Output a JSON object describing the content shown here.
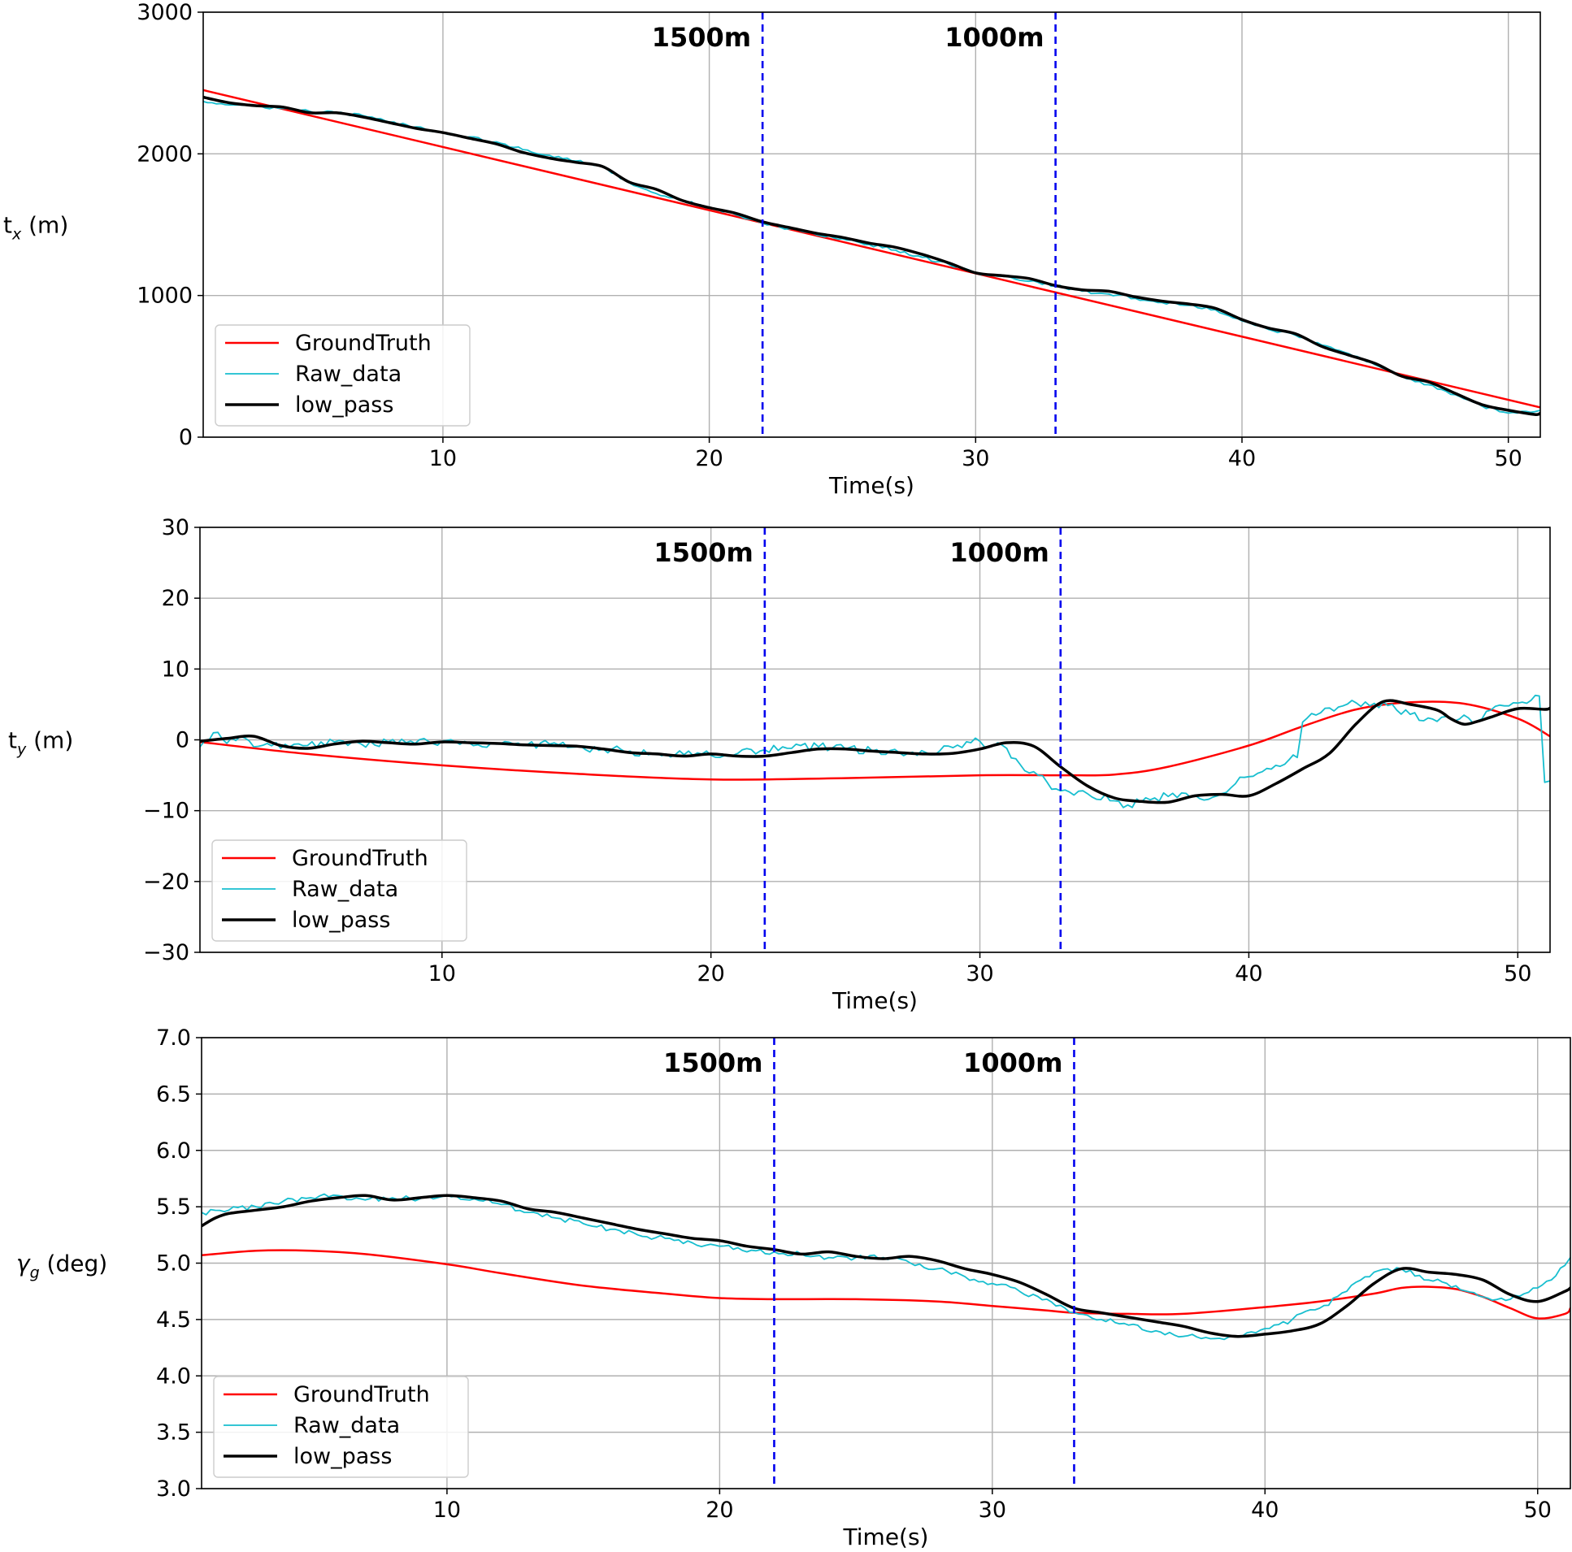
{
  "chart_data": [
    {
      "type": "line",
      "ylabel": "t",
      "ylabel_sub": "x",
      "ylabel_unit": " (m)",
      "xlabel": "Time(s)",
      "xlim": [
        1,
        51.2
      ],
      "ylim": [
        0,
        3000
      ],
      "xticks": [
        10,
        20,
        30,
        40,
        50
      ],
      "yticks": [
        0,
        1000,
        2000,
        3000
      ],
      "grid": true,
      "legend_position": "lower-left",
      "markers": [
        {
          "label": "1500m",
          "x": 22.0
        },
        {
          "label": "1000m",
          "x": 33.0
        }
      ],
      "series": [
        {
          "name": "GroundTruth",
          "color": "#ff0000",
          "width": 2.5,
          "x": [
            1,
            51.2
          ],
          "y": [
            2450,
            210
          ]
        },
        {
          "name": "Raw_data",
          "color": "#17becf",
          "width": 1.8,
          "x": [
            1,
            2,
            3,
            4,
            5,
            6,
            7,
            8,
            9,
            10,
            11,
            12,
            13,
            14,
            15,
            16,
            17,
            18,
            19,
            20,
            21,
            22,
            23,
            24,
            25,
            26,
            27,
            28,
            29,
            30,
            31,
            32,
            33,
            34,
            35,
            36,
            37,
            38,
            39,
            40,
            41,
            42,
            43,
            44,
            45,
            46,
            47,
            48,
            49,
            50,
            51,
            51.2
          ],
          "y": [
            2370,
            2345,
            2335,
            2320,
            2300,
            2290,
            2270,
            2225,
            2190,
            2150,
            2120,
            2085,
            2030,
            1990,
            1950,
            1910,
            1795,
            1720,
            1670,
            1620,
            1570,
            1510,
            1470,
            1430,
            1400,
            1360,
            1320,
            1270,
            1220,
            1160,
            1135,
            1100,
            1070,
            1030,
            1010,
            980,
            950,
            930,
            900,
            820,
            760,
            720,
            650,
            590,
            510,
            430,
            370,
            300,
            220,
            170,
            180,
            190
          ],
          "noise": 10
        },
        {
          "name": "low_pass",
          "color": "#000000",
          "width": 3.5,
          "x": [
            1,
            2,
            3,
            4,
            5,
            6,
            7,
            8,
            9,
            10,
            11,
            12,
            13,
            14,
            15,
            16,
            17,
            18,
            19,
            20,
            21,
            22,
            23,
            24,
            25,
            26,
            27,
            28,
            29,
            30,
            31,
            32,
            33,
            34,
            35,
            36,
            37,
            38,
            39,
            40,
            41,
            42,
            43,
            44,
            45,
            46,
            47,
            48,
            49,
            50,
            51,
            51.2
          ],
          "y": [
            2400,
            2360,
            2340,
            2330,
            2290,
            2290,
            2260,
            2220,
            2180,
            2150,
            2110,
            2070,
            2010,
            1970,
            1940,
            1910,
            1800,
            1750,
            1670,
            1620,
            1580,
            1520,
            1480,
            1440,
            1410,
            1370,
            1340,
            1290,
            1230,
            1160,
            1140,
            1120,
            1070,
            1040,
            1030,
            990,
            960,
            940,
            910,
            830,
            770,
            730,
            640,
            580,
            520,
            430,
            390,
            310,
            230,
            190,
            160,
            170
          ]
        }
      ]
    },
    {
      "type": "line",
      "ylabel": "t",
      "ylabel_sub": "y",
      "ylabel_unit": " (m)",
      "xlabel": "Time(s)",
      "xlim": [
        1,
        51.2
      ],
      "ylim": [
        -30,
        30
      ],
      "xticks": [
        10,
        20,
        30,
        40,
        50
      ],
      "yticks": [
        -30,
        -20,
        -10,
        0,
        10,
        20,
        30
      ],
      "grid": true,
      "legend_position": "lower-left",
      "markers": [
        {
          "label": "1500m",
          "x": 22.0
        },
        {
          "label": "1000m",
          "x": 33.0
        }
      ],
      "series": [
        {
          "name": "GroundTruth",
          "color": "#ff0000",
          "width": 2.5,
          "x": [
            1,
            5,
            10,
            15,
            20,
            25,
            30,
            33,
            35,
            37,
            40,
            42,
            44,
            46,
            48,
            50,
            51.2
          ],
          "y": [
            -0.3,
            -2.0,
            -3.6,
            -4.8,
            -5.6,
            -5.4,
            -5.0,
            -5.0,
            -4.9,
            -3.8,
            -0.8,
            1.9,
            4.3,
            5.3,
            5.1,
            3.0,
            0.5
          ]
        },
        {
          "name": "Raw_data",
          "color": "#17becf",
          "width": 1.8,
          "x": [
            1,
            1.5,
            2,
            2.5,
            3,
            3.5,
            4,
            5,
            6,
            7,
            8,
            9,
            10,
            11,
            12,
            13,
            14,
            15,
            16,
            17,
            18,
            19,
            20,
            21,
            22,
            23,
            24,
            25,
            26,
            27,
            28,
            29,
            30,
            30.5,
            31,
            31.5,
            32,
            32.5,
            33,
            33.5,
            34,
            35,
            35.5,
            36,
            36.5,
            37,
            37.5,
            38,
            38.5,
            39,
            39.5,
            40,
            40.5,
            41,
            41.5,
            41.8,
            42,
            42.5,
            43,
            43.5,
            44,
            44.5,
            45,
            45.5,
            46,
            46.5,
            47,
            47.5,
            48,
            48.5,
            49,
            49.5,
            50,
            50.5,
            50.8,
            51,
            51.2
          ],
          "y": [
            -1.0,
            1.0,
            -0.5,
            0.5,
            -1.0,
            -0.5,
            -1.2,
            -0.8,
            -0.3,
            -0.6,
            -0.3,
            -0.5,
            -0.2,
            -0.4,
            -0.6,
            -0.8,
            -0.6,
            -1.0,
            -1.3,
            -1.6,
            -1.9,
            -2.1,
            -2.2,
            -1.9,
            -1.4,
            -1.2,
            -1.0,
            -1.3,
            -1.6,
            -1.8,
            -1.8,
            -1.1,
            -0.2,
            -0.8,
            -1.2,
            -3.5,
            -4.5,
            -6.0,
            -7.2,
            -7.8,
            -7.6,
            -8.6,
            -9.2,
            -8.8,
            -8.2,
            -8.0,
            -7.5,
            -7.8,
            -8.4,
            -7.6,
            -6.2,
            -5.2,
            -4.5,
            -3.6,
            -2.8,
            -2.5,
            2.5,
            3.5,
            4.5,
            4.8,
            5.2,
            4.8,
            5.3,
            4.2,
            3.6,
            2.7,
            2.6,
            3.0,
            3.5,
            2.7,
            4.2,
            4.8,
            5.2,
            5.6,
            6.2,
            -6.0,
            -5.8
          ],
          "noise": 0.6
        },
        {
          "name": "low_pass",
          "color": "#000000",
          "width": 3.5,
          "x": [
            1,
            2,
            3,
            4,
            5,
            6,
            7,
            8,
            9,
            10,
            11,
            12,
            13,
            14,
            15,
            16,
            17,
            18,
            19,
            20,
            21,
            22,
            23,
            24,
            25,
            26,
            27,
            28,
            29,
            30,
            31,
            32,
            33,
            34,
            35,
            36,
            37,
            38,
            39,
            40,
            41,
            42,
            43,
            44,
            45,
            46,
            47,
            47.5,
            48,
            48.5,
            49,
            50,
            51,
            51.2
          ],
          "y": [
            -0.2,
            0.2,
            0.5,
            -0.8,
            -1.2,
            -0.6,
            -0.2,
            -0.4,
            -0.6,
            -0.3,
            -0.4,
            -0.5,
            -0.7,
            -0.8,
            -0.9,
            -1.3,
            -1.8,
            -2.0,
            -2.3,
            -2.0,
            -2.3,
            -2.3,
            -1.8,
            -1.3,
            -1.3,
            -1.6,
            -1.8,
            -2.0,
            -1.9,
            -1.3,
            -0.4,
            -0.9,
            -3.8,
            -6.5,
            -8.2,
            -8.7,
            -8.8,
            -7.9,
            -7.7,
            -7.9,
            -6.2,
            -4.1,
            -1.9,
            2.3,
            5.4,
            5.0,
            4.2,
            3.0,
            2.2,
            2.6,
            3.2,
            4.4,
            4.3,
            4.5
          ]
        }
      ]
    },
    {
      "type": "line",
      "ylabel": "γ",
      "ylabel_sub": "g",
      "ylabel_unit": " (deg)",
      "xlabel": "Time(s)",
      "xlim": [
        1,
        51.2
      ],
      "ylim": [
        3.0,
        7.0
      ],
      "xticks": [
        10,
        20,
        30,
        40,
        50
      ],
      "yticks": [
        3.0,
        3.5,
        4.0,
        4.5,
        5.0,
        5.5,
        6.0,
        6.5,
        7.0
      ],
      "tick_decimals": 1,
      "grid": true,
      "legend_position": "lower-left",
      "markers": [
        {
          "label": "1500m",
          "x": 22.0
        },
        {
          "label": "1000m",
          "x": 33.0
        }
      ],
      "series": [
        {
          "name": "GroundTruth",
          "color": "#ff0000",
          "width": 2.5,
          "x": [
            1,
            3,
            5,
            7,
            10,
            12,
            15,
            18,
            20,
            22,
            25,
            28,
            30,
            32,
            33,
            35,
            37,
            40,
            42,
            44,
            45,
            46,
            47,
            48,
            49,
            50,
            51,
            51.2
          ],
          "y": [
            5.07,
            5.11,
            5.11,
            5.08,
            4.99,
            4.91,
            4.8,
            4.73,
            4.69,
            4.68,
            4.68,
            4.66,
            4.62,
            4.58,
            4.56,
            4.55,
            4.55,
            4.61,
            4.66,
            4.73,
            4.78,
            4.79,
            4.77,
            4.7,
            4.6,
            4.51,
            4.55,
            4.6
          ]
        },
        {
          "name": "Raw_data",
          "color": "#17becf",
          "width": 1.8,
          "x": [
            1,
            2,
            3,
            4,
            5,
            6,
            7,
            8,
            9,
            10,
            11,
            12,
            13,
            14,
            15,
            16,
            17,
            18,
            19,
            20,
            21,
            22,
            23,
            24,
            25,
            26,
            27,
            28,
            29,
            30,
            31,
            32,
            33,
            34,
            35,
            36,
            37,
            38,
            39,
            40,
            41,
            42,
            43,
            44,
            45,
            46,
            47,
            48,
            49,
            50,
            50.5,
            51,
            51.2
          ],
          "y": [
            5.45,
            5.47,
            5.5,
            5.55,
            5.58,
            5.6,
            5.56,
            5.58,
            5.57,
            5.6,
            5.57,
            5.52,
            5.45,
            5.4,
            5.35,
            5.3,
            5.25,
            5.22,
            5.18,
            5.15,
            5.1,
            5.1,
            5.08,
            5.05,
            5.05,
            5.05,
            5.0,
            4.95,
            4.88,
            4.82,
            4.75,
            4.68,
            4.56,
            4.5,
            4.45,
            4.4,
            4.35,
            4.33,
            4.35,
            4.42,
            4.5,
            4.6,
            4.75,
            4.92,
            4.95,
            4.85,
            4.8,
            4.7,
            4.68,
            4.78,
            4.85,
            4.98,
            5.05
          ],
          "noise": 0.025
        },
        {
          "name": "low_pass",
          "color": "#000000",
          "width": 3.5,
          "x": [
            1,
            1.5,
            2,
            3,
            4,
            5,
            6,
            7,
            8,
            9,
            10,
            11,
            12,
            13,
            14,
            15,
            16,
            17,
            18,
            19,
            20,
            21,
            22,
            23,
            24,
            25,
            26,
            27,
            28,
            29,
            30,
            31,
            32,
            33,
            34,
            35,
            36,
            37,
            38,
            39,
            40,
            41,
            42,
            43,
            44,
            45,
            46,
            47,
            48,
            49,
            50,
            51,
            51.2
          ],
          "y": [
            5.33,
            5.4,
            5.44,
            5.47,
            5.5,
            5.55,
            5.58,
            5.6,
            5.56,
            5.58,
            5.6,
            5.58,
            5.55,
            5.48,
            5.45,
            5.4,
            5.35,
            5.3,
            5.26,
            5.22,
            5.2,
            5.15,
            5.12,
            5.08,
            5.1,
            5.06,
            5.04,
            5.06,
            5.02,
            4.95,
            4.9,
            4.83,
            4.72,
            4.6,
            4.56,
            4.52,
            4.48,
            4.44,
            4.38,
            4.35,
            4.37,
            4.4,
            4.46,
            4.62,
            4.82,
            4.95,
            4.92,
            4.9,
            4.85,
            4.72,
            4.66,
            4.75,
            4.78
          ]
        }
      ]
    }
  ]
}
